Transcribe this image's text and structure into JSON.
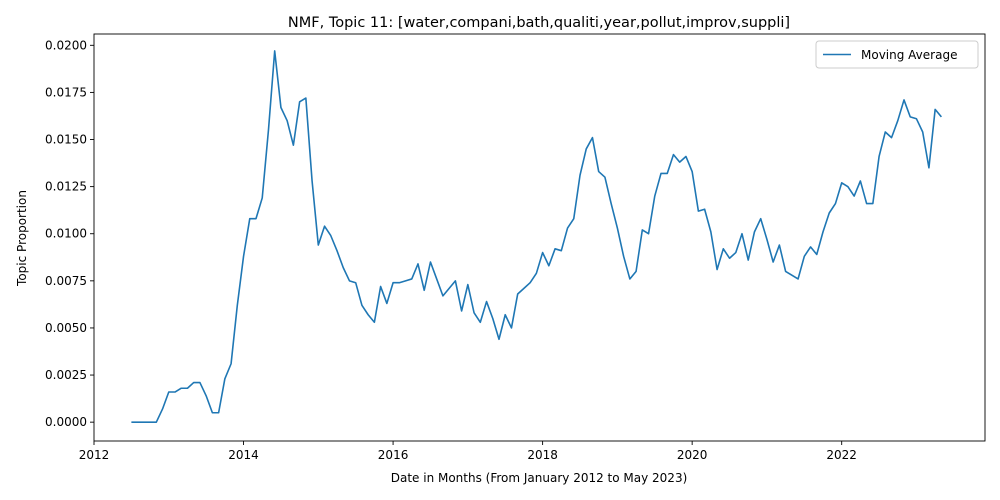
{
  "chart_data": {
    "type": "line",
    "title": "NMF, Topic 11: [water,compani,bath,qualiti,year,pollut,improv,suppli]",
    "xlabel": "Date in Months (From January 2012 to May 2023)",
    "ylabel": "Topic Proportion",
    "xlim": [
      "2012-01",
      "2023-12"
    ],
    "ylim": [
      -0.001,
      0.0206
    ],
    "x_ticks": [
      "2012",
      "2014",
      "2016",
      "2018",
      "2020",
      "2022"
    ],
    "y_ticks": [
      "0.0000",
      "0.0025",
      "0.0050",
      "0.0075",
      "0.0100",
      "0.0125",
      "0.0150",
      "0.0175",
      "0.0200"
    ],
    "grid": false,
    "legend": "top-right",
    "series": [
      {
        "name": "Moving Average",
        "color": "#1f77b4",
        "x": [
          "2012-07",
          "2012-08",
          "2012-09",
          "2012-10",
          "2012-11",
          "2012-12",
          "2013-01",
          "2013-02",
          "2013-03",
          "2013-04",
          "2013-05",
          "2013-06",
          "2013-07",
          "2013-08",
          "2013-09",
          "2013-10",
          "2013-11",
          "2013-12",
          "2014-01",
          "2014-02",
          "2014-03",
          "2014-04",
          "2014-05",
          "2014-06",
          "2014-07",
          "2014-08",
          "2014-09",
          "2014-10",
          "2014-11",
          "2014-12",
          "2015-01",
          "2015-02",
          "2015-03",
          "2015-04",
          "2015-05",
          "2015-06",
          "2015-07",
          "2015-08",
          "2015-09",
          "2015-10",
          "2015-11",
          "2015-12",
          "2016-01",
          "2016-02",
          "2016-03",
          "2016-04",
          "2016-05",
          "2016-06",
          "2016-07",
          "2016-08",
          "2016-09",
          "2016-10",
          "2016-11",
          "2016-12",
          "2017-01",
          "2017-02",
          "2017-03",
          "2017-04",
          "2017-05",
          "2017-06",
          "2017-07",
          "2017-08",
          "2017-09",
          "2017-10",
          "2017-11",
          "2017-12",
          "2018-01",
          "2018-02",
          "2018-03",
          "2018-04",
          "2018-05",
          "2018-06",
          "2018-07",
          "2018-08",
          "2018-09",
          "2018-10",
          "2018-11",
          "2018-12",
          "2019-01",
          "2019-02",
          "2019-03",
          "2019-04",
          "2019-05",
          "2019-06",
          "2019-07",
          "2019-08",
          "2019-09",
          "2019-10",
          "2019-11",
          "2019-12",
          "2020-01",
          "2020-02",
          "2020-03",
          "2020-04",
          "2020-05",
          "2020-06",
          "2020-07",
          "2020-08",
          "2020-09",
          "2020-10",
          "2020-11",
          "2020-12",
          "2021-01",
          "2021-02",
          "2021-03",
          "2021-04",
          "2021-05",
          "2021-06",
          "2021-07",
          "2021-08",
          "2021-09",
          "2021-10",
          "2021-11",
          "2021-12",
          "2022-01",
          "2022-02",
          "2022-03",
          "2022-04",
          "2022-05",
          "2022-06",
          "2022-07",
          "2022-08",
          "2022-09",
          "2022-10",
          "2022-11",
          "2022-12",
          "2023-01",
          "2023-02",
          "2023-03",
          "2023-04",
          "2023-05"
        ],
        "values": [
          0.0,
          0.0,
          0.0,
          0.0,
          0.0,
          0.0007,
          0.0016,
          0.0016,
          0.0018,
          0.0018,
          0.0021,
          0.0021,
          0.0014,
          0.0005,
          0.0005,
          0.0023,
          0.0031,
          0.0062,
          0.0088,
          0.0108,
          0.0108,
          0.0119,
          0.0155,
          0.0197,
          0.0167,
          0.016,
          0.0147,
          0.017,
          0.0172,
          0.0128,
          0.0094,
          0.0104,
          0.0099,
          0.0091,
          0.0082,
          0.0075,
          0.0074,
          0.0062,
          0.0057,
          0.0053,
          0.0072,
          0.0063,
          0.0074,
          0.0074,
          0.0075,
          0.0076,
          0.0084,
          0.007,
          0.0085,
          0.0076,
          0.0067,
          0.0071,
          0.0075,
          0.0059,
          0.0073,
          0.0058,
          0.0053,
          0.0064,
          0.0055,
          0.0044,
          0.0057,
          0.005,
          0.0068,
          0.0071,
          0.0074,
          0.0079,
          0.009,
          0.0083,
          0.0092,
          0.0091,
          0.0103,
          0.0108,
          0.0131,
          0.0145,
          0.0151,
          0.0133,
          0.013,
          0.0116,
          0.0103,
          0.0088,
          0.0076,
          0.008,
          0.0102,
          0.01,
          0.012,
          0.0132,
          0.0132,
          0.0142,
          0.0138,
          0.0141,
          0.0133,
          0.0112,
          0.0113,
          0.0101,
          0.0081,
          0.0092,
          0.0087,
          0.009,
          0.01,
          0.0086,
          0.0101,
          0.0108,
          0.0097,
          0.0085,
          0.0094,
          0.008,
          0.0078,
          0.0076,
          0.0088,
          0.0093,
          0.0089,
          0.0101,
          0.0111,
          0.0116,
          0.0127,
          0.0125,
          0.012,
          0.0128,
          0.0116,
          0.0116,
          0.0141,
          0.0154,
          0.0151,
          0.016,
          0.0171,
          0.0162,
          0.0161,
          0.0154,
          0.0135,
          0.0166,
          0.0162
        ]
      }
    ]
  }
}
